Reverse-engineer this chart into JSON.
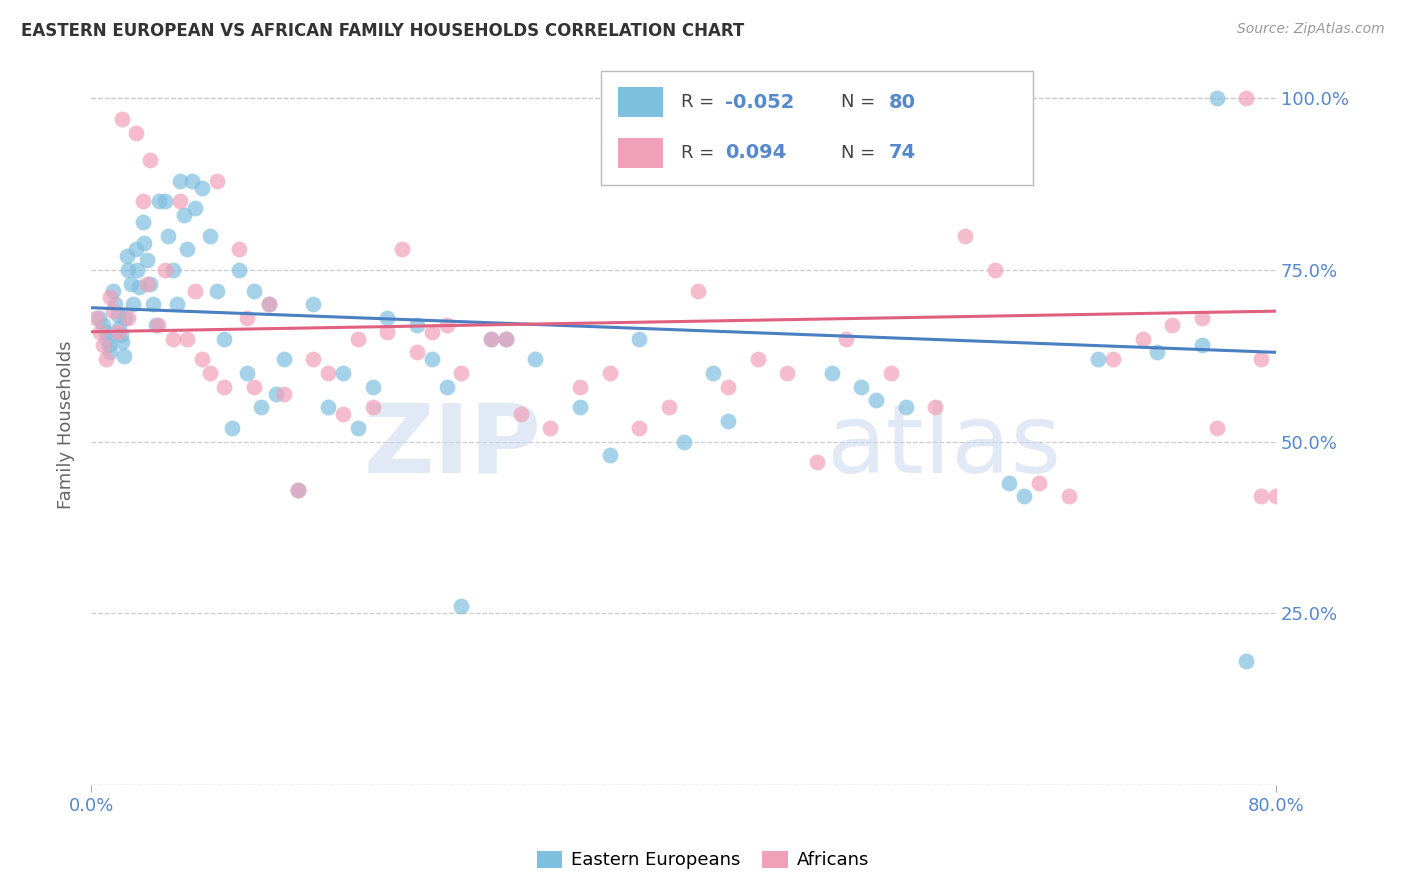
{
  "title": "EASTERN EUROPEAN VS AFRICAN FAMILY HOUSEHOLDS CORRELATION CHART",
  "source": "Source: ZipAtlas.com",
  "ylabel": "Family Households",
  "blue_color": "#7fbfdf",
  "pink_color": "#f0a0b8",
  "blue_line_color": "#4a7fc1",
  "pink_line_color": "#e06080",
  "tick_color": "#5588cc",
  "legend_blue_label": "Eastern Europeans",
  "legend_pink_label": "Africans",
  "blue_x": [
    0.005,
    0.008,
    0.01,
    0.011,
    0.012,
    0.013,
    0.015,
    0.016,
    0.018,
    0.019,
    0.02,
    0.021,
    0.022,
    0.023,
    0.024,
    0.025,
    0.027,
    0.028,
    0.03,
    0.031,
    0.032,
    0.035,
    0.036,
    0.038,
    0.04,
    0.042,
    0.044,
    0.046,
    0.05,
    0.052,
    0.055,
    0.058,
    0.06,
    0.063,
    0.065,
    0.068,
    0.07,
    0.075,
    0.08,
    0.085,
    0.09,
    0.095,
    0.1,
    0.105,
    0.11,
    0.115,
    0.12,
    0.125,
    0.13,
    0.14,
    0.15,
    0.16,
    0.17,
    0.18,
    0.19,
    0.2,
    0.22,
    0.23,
    0.24,
    0.25,
    0.27,
    0.28,
    0.3,
    0.33,
    0.35,
    0.37,
    0.4,
    0.42,
    0.43,
    0.5,
    0.52,
    0.53,
    0.55,
    0.62,
    0.63,
    0.68,
    0.72,
    0.75,
    0.76,
    0.78
  ],
  "blue_y": [
    0.68,
    0.67,
    0.66,
    0.65,
    0.64,
    0.63,
    0.72,
    0.7,
    0.685,
    0.665,
    0.655,
    0.645,
    0.625,
    0.68,
    0.77,
    0.75,
    0.73,
    0.7,
    0.78,
    0.75,
    0.725,
    0.82,
    0.79,
    0.765,
    0.73,
    0.7,
    0.67,
    0.85,
    0.85,
    0.8,
    0.75,
    0.7,
    0.88,
    0.83,
    0.78,
    0.88,
    0.84,
    0.87,
    0.8,
    0.72,
    0.65,
    0.52,
    0.75,
    0.6,
    0.72,
    0.55,
    0.7,
    0.57,
    0.62,
    0.43,
    0.7,
    0.55,
    0.6,
    0.52,
    0.58,
    0.68,
    0.67,
    0.62,
    0.58,
    0.26,
    0.65,
    0.65,
    0.62,
    0.55,
    0.48,
    0.65,
    0.5,
    0.6,
    0.53,
    0.6,
    0.58,
    0.56,
    0.55,
    0.44,
    0.42,
    0.62,
    0.63,
    0.64,
    1.0,
    0.18
  ],
  "pink_x": [
    0.003,
    0.006,
    0.008,
    0.01,
    0.013,
    0.015,
    0.018,
    0.021,
    0.025,
    0.03,
    0.035,
    0.038,
    0.04,
    0.045,
    0.05,
    0.055,
    0.06,
    0.065,
    0.07,
    0.075,
    0.08,
    0.085,
    0.09,
    0.1,
    0.105,
    0.11,
    0.12,
    0.13,
    0.14,
    0.15,
    0.16,
    0.17,
    0.18,
    0.19,
    0.2,
    0.21,
    0.22,
    0.23,
    0.24,
    0.25,
    0.27,
    0.28,
    0.29,
    0.31,
    0.33,
    0.35,
    0.37,
    0.39,
    0.41,
    0.43,
    0.45,
    0.47,
    0.49,
    0.51,
    0.54,
    0.57,
    0.59,
    0.61,
    0.64,
    0.66,
    0.69,
    0.71,
    0.73,
    0.75,
    0.76,
    0.78,
    0.79,
    0.8,
    0.79
  ],
  "pink_y": [
    0.68,
    0.66,
    0.64,
    0.62,
    0.71,
    0.69,
    0.66,
    0.97,
    0.68,
    0.95,
    0.85,
    0.73,
    0.91,
    0.67,
    0.75,
    0.65,
    0.85,
    0.65,
    0.72,
    0.62,
    0.6,
    0.88,
    0.58,
    0.78,
    0.68,
    0.58,
    0.7,
    0.57,
    0.43,
    0.62,
    0.6,
    0.54,
    0.65,
    0.55,
    0.66,
    0.78,
    0.63,
    0.66,
    0.67,
    0.6,
    0.65,
    0.65,
    0.54,
    0.52,
    0.58,
    0.6,
    0.52,
    0.55,
    0.72,
    0.58,
    0.62,
    0.6,
    0.47,
    0.65,
    0.6,
    0.55,
    0.8,
    0.75,
    0.44,
    0.42,
    0.62,
    0.65,
    0.67,
    0.68,
    0.52,
    1.0,
    0.62,
    0.42,
    0.42
  ],
  "blue_trend_start": 0.695,
  "blue_trend_end": 0.63,
  "pink_trend_start": 0.66,
  "pink_trend_end": 0.69,
  "xlim": [
    0.0,
    0.8
  ],
  "ylim": [
    0.0,
    1.05
  ],
  "xticks": [
    0.0,
    0.8
  ],
  "xtick_labels": [
    "0.0%",
    "80.0%"
  ],
  "yticks": [
    0.0,
    0.25,
    0.5,
    0.75,
    1.0
  ],
  "ytick_labels_right": [
    "",
    "25.0%",
    "50.0%",
    "75.0%",
    "100.0%"
  ]
}
